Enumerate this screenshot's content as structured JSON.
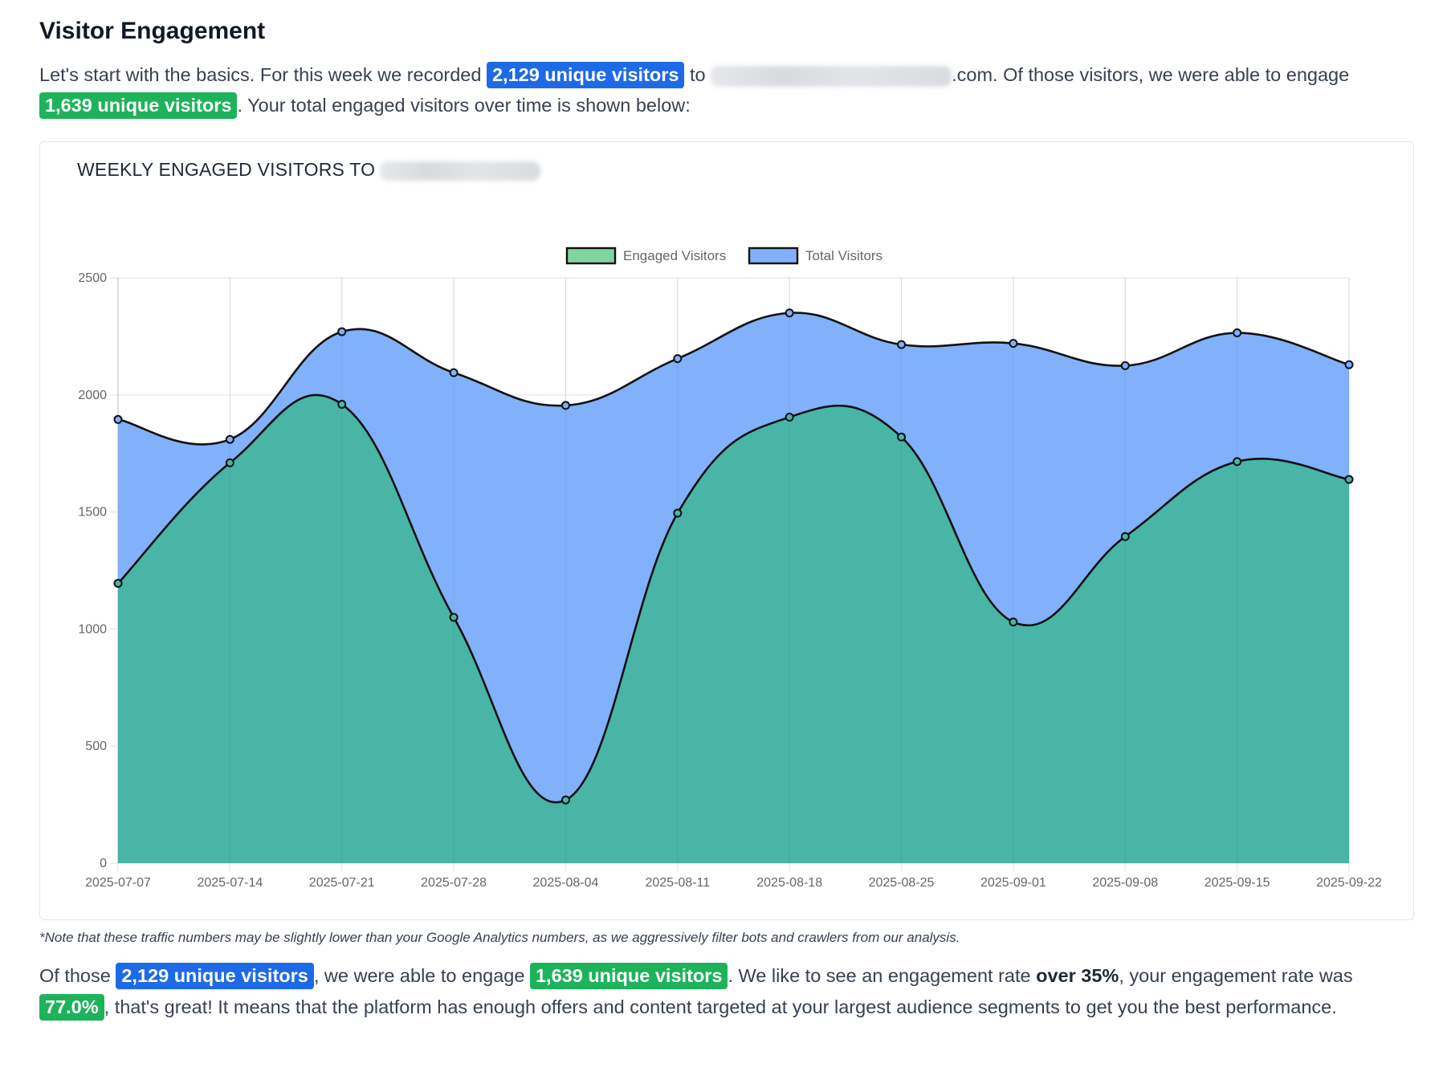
{
  "heading": "Visitor Engagement",
  "intro": {
    "part1": "Let's start with the basics. For this week we recorded ",
    "badge_total": "2,129 unique visitors",
    "part2": " to ",
    "domain_suffix": ".com. Of those visitors, we were able to engage ",
    "badge_engaged": "1,639 unique visitors",
    "part3": ". Your total engaged visitors over time is shown below:"
  },
  "chart_card": {
    "title": "WEEKLY ENGAGED VISITORS TO"
  },
  "note": "*Note that these traffic numbers may be slightly lower than your Google Analytics numbers, as we aggressively filter bots and crawlers from our analysis.",
  "summary": {
    "part1": "Of those ",
    "badge_total": "2,129 unique visitors",
    "part2": ", we were able to engage ",
    "badge_engaged": "1,639 unique visitors",
    "part3": ". We like to see an engagement rate ",
    "emphasis": "over 35%",
    "part4": ", your engagement rate was ",
    "badge_rate": "77.0%",
    "part5": ", that's great! It means that the platform has enough offers and content targeted at your largest audience segments to get you the best performance."
  },
  "colors": {
    "badge_blue": "#1e6ae6",
    "badge_green": "#1db35a",
    "engaged_fill": "#48b5a6",
    "total_fill": "#80b1fa",
    "line": "#111111",
    "grid": "#e8e8e8",
    "axis_text": "#666666"
  },
  "chart_data": {
    "type": "area",
    "title": "WEEKLY ENGAGED VISITORS TO",
    "legend_position": "top",
    "grid": true,
    "x": [
      "2025-07-07",
      "2025-07-14",
      "2025-07-21",
      "2025-07-28",
      "2025-08-04",
      "2025-08-11",
      "2025-08-18",
      "2025-08-25",
      "2025-09-01",
      "2025-09-08",
      "2025-09-15",
      "2025-09-22"
    ],
    "yticks": [
      "0",
      "500",
      "1000",
      "1500",
      "2000",
      "2500"
    ],
    "ylim": [
      0,
      2500
    ],
    "series": [
      {
        "name": "Engaged Visitors",
        "color": "#48b5a6",
        "legend_color": "#7fd6a0",
        "values": [
          1195,
          1710,
          1960,
          1050,
          270,
          1495,
          1905,
          1820,
          1030,
          1395,
          1715,
          1639
        ]
      },
      {
        "name": "Total Visitors",
        "color": "#80b1fa",
        "legend_color": "#80b1fa",
        "values": [
          1895,
          1810,
          2270,
          2095,
          1955,
          2155,
          2350,
          2215,
          2220,
          2125,
          2265,
          2129
        ]
      }
    ]
  }
}
